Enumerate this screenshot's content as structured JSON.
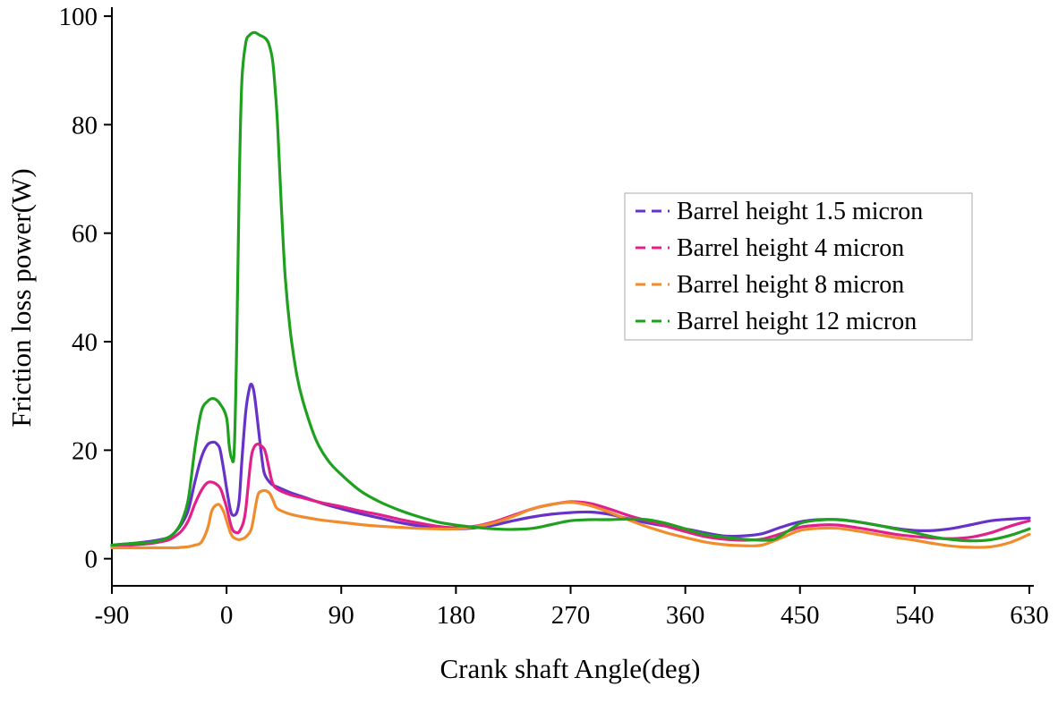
{
  "chart_data": {
    "type": "line",
    "title": "",
    "xlabel": "Crank shaft Angle(deg)",
    "ylabel": "Friction loss power(W)",
    "xlim": [
      -90,
      630
    ],
    "ylim": [
      -5,
      101
    ],
    "xticks": [
      -90,
      0,
      90,
      180,
      270,
      360,
      450,
      540,
      630
    ],
    "yticks": [
      0,
      20,
      40,
      60,
      80,
      100
    ],
    "grid": false,
    "legend_position": "upper right",
    "legend_border_color": "#b9b9b9",
    "series": [
      {
        "name": "Barrel height 1.5 micron",
        "color": "#6732c8",
        "points": [
          [
            -90,
            2.5
          ],
          [
            -75,
            2.8
          ],
          [
            -60,
            3.2
          ],
          [
            -50,
            3.6
          ],
          [
            -45,
            4.0
          ],
          [
            -40,
            5.0
          ],
          [
            -35,
            6.5
          ],
          [
            -30,
            9.0
          ],
          [
            -25,
            14.0
          ],
          [
            -20,
            18.5
          ],
          [
            -15,
            21.0
          ],
          [
            -10,
            21.5
          ],
          [
            -7,
            21.0
          ],
          [
            -5,
            20.0
          ],
          [
            -2,
            16.0
          ],
          [
            0,
            13.0
          ],
          [
            3,
            9.0
          ],
          [
            5,
            8.0
          ],
          [
            8,
            8.5
          ],
          [
            10,
            11.0
          ],
          [
            12,
            18.0
          ],
          [
            15,
            27.0
          ],
          [
            18,
            31.5
          ],
          [
            20,
            32.0
          ],
          [
            22,
            30.0
          ],
          [
            25,
            24.0
          ],
          [
            28,
            18.0
          ],
          [
            30,
            15.5
          ],
          [
            35,
            13.8
          ],
          [
            40,
            13.2
          ],
          [
            50,
            12.2
          ],
          [
            60,
            11.4
          ],
          [
            75,
            10.2
          ],
          [
            90,
            9.2
          ],
          [
            105,
            8.3
          ],
          [
            120,
            7.5
          ],
          [
            135,
            6.7
          ],
          [
            150,
            6.1
          ],
          [
            165,
            5.7
          ],
          [
            180,
            5.5
          ],
          [
            195,
            5.7
          ],
          [
            210,
            6.2
          ],
          [
            225,
            7.0
          ],
          [
            240,
            7.7
          ],
          [
            255,
            8.2
          ],
          [
            270,
            8.5
          ],
          [
            285,
            8.6
          ],
          [
            300,
            8.2
          ],
          [
            315,
            7.4
          ],
          [
            330,
            6.6
          ],
          [
            345,
            6.0
          ],
          [
            360,
            5.5
          ],
          [
            375,
            4.8
          ],
          [
            390,
            4.2
          ],
          [
            405,
            4.2
          ],
          [
            420,
            4.6
          ],
          [
            435,
            5.8
          ],
          [
            450,
            6.8
          ],
          [
            465,
            7.2
          ],
          [
            480,
            7.2
          ],
          [
            495,
            6.8
          ],
          [
            510,
            6.2
          ],
          [
            525,
            5.6
          ],
          [
            540,
            5.2
          ],
          [
            555,
            5.2
          ],
          [
            570,
            5.6
          ],
          [
            585,
            6.3
          ],
          [
            600,
            7.0
          ],
          [
            615,
            7.3
          ],
          [
            630,
            7.5
          ]
        ]
      },
      {
        "name": "Barrel height 4 micron",
        "color": "#e0218a",
        "points": [
          [
            -90,
            2.3
          ],
          [
            -75,
            2.5
          ],
          [
            -60,
            2.8
          ],
          [
            -50,
            3.2
          ],
          [
            -45,
            3.5
          ],
          [
            -40,
            4.2
          ],
          [
            -35,
            5.2
          ],
          [
            -30,
            7.0
          ],
          [
            -25,
            10.0
          ],
          [
            -20,
            12.5
          ],
          [
            -15,
            14.0
          ],
          [
            -10,
            14.0
          ],
          [
            -5,
            13.0
          ],
          [
            -2,
            11.0
          ],
          [
            0,
            9.5
          ],
          [
            3,
            6.5
          ],
          [
            5,
            5.2
          ],
          [
            8,
            4.8
          ],
          [
            10,
            5.0
          ],
          [
            13,
            6.5
          ],
          [
            15,
            9.0
          ],
          [
            18,
            16.0
          ],
          [
            20,
            19.5
          ],
          [
            23,
            21.0
          ],
          [
            26,
            21.0
          ],
          [
            30,
            20.0
          ],
          [
            33,
            17.0
          ],
          [
            36,
            14.0
          ],
          [
            40,
            12.8
          ],
          [
            50,
            11.8
          ],
          [
            60,
            11.2
          ],
          [
            75,
            10.3
          ],
          [
            90,
            9.6
          ],
          [
            105,
            8.8
          ],
          [
            120,
            8.1
          ],
          [
            135,
            7.3
          ],
          [
            150,
            6.6
          ],
          [
            165,
            6.0
          ],
          [
            180,
            5.7
          ],
          [
            195,
            6.0
          ],
          [
            210,
            6.8
          ],
          [
            225,
            8.0
          ],
          [
            240,
            9.2
          ],
          [
            255,
            10.0
          ],
          [
            270,
            10.5
          ],
          [
            285,
            10.2
          ],
          [
            300,
            9.2
          ],
          [
            315,
            8.0
          ],
          [
            330,
            7.0
          ],
          [
            345,
            6.0
          ],
          [
            360,
            5.0
          ],
          [
            375,
            4.1
          ],
          [
            390,
            3.6
          ],
          [
            405,
            3.4
          ],
          [
            420,
            3.6
          ],
          [
            435,
            4.6
          ],
          [
            450,
            5.8
          ],
          [
            465,
            6.2
          ],
          [
            480,
            6.2
          ],
          [
            495,
            5.7
          ],
          [
            510,
            5.1
          ],
          [
            525,
            4.5
          ],
          [
            540,
            4.1
          ],
          [
            555,
            3.8
          ],
          [
            570,
            3.7
          ],
          [
            585,
            4.0
          ],
          [
            600,
            4.8
          ],
          [
            615,
            6.0
          ],
          [
            630,
            7.0
          ]
        ]
      },
      {
        "name": "Barrel height 8 micron",
        "color": "#f08c2e",
        "points": [
          [
            -90,
            2.0
          ],
          [
            -75,
            2.0
          ],
          [
            -60,
            2.0
          ],
          [
            -50,
            2.0
          ],
          [
            -45,
            2.0
          ],
          [
            -40,
            2.0
          ],
          [
            -35,
            2.1
          ],
          [
            -30,
            2.2
          ],
          [
            -25,
            2.5
          ],
          [
            -20,
            3.0
          ],
          [
            -15,
            5.5
          ],
          [
            -12,
            8.5
          ],
          [
            -10,
            9.5
          ],
          [
            -7,
            10.0
          ],
          [
            -5,
            9.8
          ],
          [
            -2,
            8.5
          ],
          [
            0,
            7.0
          ],
          [
            3,
            4.8
          ],
          [
            5,
            4.0
          ],
          [
            8,
            3.6
          ],
          [
            10,
            3.5
          ],
          [
            13,
            3.7
          ],
          [
            15,
            4.0
          ],
          [
            18,
            4.8
          ],
          [
            20,
            6.0
          ],
          [
            23,
            10.0
          ],
          [
            25,
            12.0
          ],
          [
            28,
            12.5
          ],
          [
            31,
            12.5
          ],
          [
            34,
            12.0
          ],
          [
            37,
            10.5
          ],
          [
            40,
            9.2
          ],
          [
            50,
            8.2
          ],
          [
            60,
            7.7
          ],
          [
            75,
            7.1
          ],
          [
            90,
            6.7
          ],
          [
            105,
            6.3
          ],
          [
            120,
            6.0
          ],
          [
            135,
            5.8
          ],
          [
            150,
            5.6
          ],
          [
            165,
            5.5
          ],
          [
            180,
            5.5
          ],
          [
            195,
            5.9
          ],
          [
            210,
            6.6
          ],
          [
            225,
            7.8
          ],
          [
            240,
            9.2
          ],
          [
            255,
            10.0
          ],
          [
            270,
            10.4
          ],
          [
            285,
            9.8
          ],
          [
            300,
            8.6
          ],
          [
            315,
            7.2
          ],
          [
            330,
            5.9
          ],
          [
            345,
            4.8
          ],
          [
            360,
            3.9
          ],
          [
            375,
            3.1
          ],
          [
            390,
            2.6
          ],
          [
            405,
            2.4
          ],
          [
            420,
            2.5
          ],
          [
            435,
            3.8
          ],
          [
            450,
            5.2
          ],
          [
            465,
            5.6
          ],
          [
            480,
            5.6
          ],
          [
            495,
            5.1
          ],
          [
            510,
            4.5
          ],
          [
            525,
            3.9
          ],
          [
            540,
            3.4
          ],
          [
            555,
            2.8
          ],
          [
            570,
            2.3
          ],
          [
            585,
            2.1
          ],
          [
            600,
            2.2
          ],
          [
            615,
            3.0
          ],
          [
            630,
            4.5
          ]
        ]
      },
      {
        "name": "Barrel height 12 micron",
        "color": "#1fa01f",
        "points": [
          [
            -90,
            2.5
          ],
          [
            -75,
            2.8
          ],
          [
            -60,
            3.0
          ],
          [
            -50,
            3.5
          ],
          [
            -45,
            4.0
          ],
          [
            -40,
            5.0
          ],
          [
            -35,
            7.0
          ],
          [
            -30,
            11.0
          ],
          [
            -25,
            20.0
          ],
          [
            -20,
            27.0
          ],
          [
            -15,
            29.0
          ],
          [
            -10,
            29.5
          ],
          [
            -5,
            28.5
          ],
          [
            0,
            26.0
          ],
          [
            2,
            21.0
          ],
          [
            4,
            18.5
          ],
          [
            6,
            20.0
          ],
          [
            8,
            40.0
          ],
          [
            10,
            70.0
          ],
          [
            12,
            88.0
          ],
          [
            15,
            95.0
          ],
          [
            18,
            96.5
          ],
          [
            22,
            97.0
          ],
          [
            26,
            96.5
          ],
          [
            30,
            96.0
          ],
          [
            33,
            95.0
          ],
          [
            36,
            92.0
          ],
          [
            38,
            87.0
          ],
          [
            40,
            80.0
          ],
          [
            43,
            65.0
          ],
          [
            46,
            52.0
          ],
          [
            50,
            42.0
          ],
          [
            55,
            34.0
          ],
          [
            60,
            29.0
          ],
          [
            70,
            22.0
          ],
          [
            80,
            18.0
          ],
          [
            90,
            15.5
          ],
          [
            105,
            12.5
          ],
          [
            120,
            10.5
          ],
          [
            135,
            9.0
          ],
          [
            150,
            7.8
          ],
          [
            165,
            6.8
          ],
          [
            180,
            6.2
          ],
          [
            195,
            5.8
          ],
          [
            210,
            5.5
          ],
          [
            225,
            5.4
          ],
          [
            240,
            5.6
          ],
          [
            255,
            6.3
          ],
          [
            270,
            7.0
          ],
          [
            285,
            7.2
          ],
          [
            300,
            7.2
          ],
          [
            315,
            7.3
          ],
          [
            330,
            7.2
          ],
          [
            345,
            6.5
          ],
          [
            360,
            5.5
          ],
          [
            375,
            4.5
          ],
          [
            390,
            4.0
          ],
          [
            405,
            3.6
          ],
          [
            420,
            3.4
          ],
          [
            430,
            3.6
          ],
          [
            440,
            5.0
          ],
          [
            450,
            6.5
          ],
          [
            460,
            7.0
          ],
          [
            470,
            7.2
          ],
          [
            480,
            7.2
          ],
          [
            495,
            6.8
          ],
          [
            510,
            6.2
          ],
          [
            525,
            5.5
          ],
          [
            540,
            4.8
          ],
          [
            555,
            4.0
          ],
          [
            570,
            3.5
          ],
          [
            585,
            3.3
          ],
          [
            600,
            3.5
          ],
          [
            615,
            4.3
          ],
          [
            630,
            5.5
          ]
        ]
      }
    ]
  }
}
